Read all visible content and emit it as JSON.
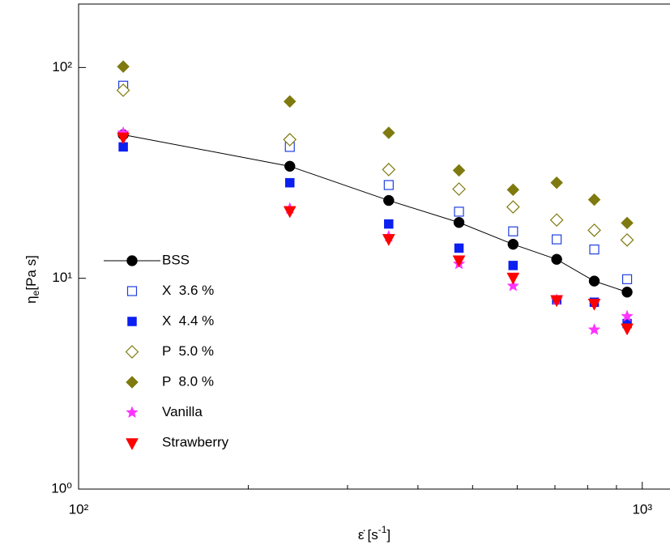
{
  "chart_data": {
    "type": "scatter",
    "x_label": {
      "symbol": "ε̇",
      "unit": "[s",
      "superscript": "-1",
      "close": "]"
    },
    "y_label": {
      "symbol": "η",
      "subscript": "e",
      "unit": "[Pa s]"
    },
    "log_x": true,
    "log_y": true,
    "xlim": [
      100,
      1120
    ],
    "ylim": [
      1,
      200
    ],
    "xticks": [
      {
        "value": 100,
        "label": "10²"
      },
      {
        "value": 1000,
        "label": "10³"
      }
    ],
    "xminor": [
      200,
      300,
      400,
      500,
      600,
      700,
      800,
      900
    ],
    "yticks": [
      {
        "value": 1,
        "label": "10⁰"
      },
      {
        "value": 10,
        "label": "10¹"
      },
      {
        "value": 100,
        "label": "10²"
      }
    ],
    "x": [
      120,
      237,
      355,
      473,
      590,
      705,
      822,
      940
    ],
    "series": [
      {
        "name": "BSS",
        "color": "#000000",
        "marker": "circle",
        "line": true,
        "values": [
          48,
          34,
          23.4,
          18.4,
          14.5,
          12.3,
          9.7,
          8.6
        ]
      },
      {
        "name": "X  3.6 %",
        "color": "#1f3fe0",
        "marker": "square-open",
        "values": [
          82,
          42,
          27.7,
          20.7,
          16.7,
          15.3,
          13.7,
          9.9
        ]
      },
      {
        "name": "X  4.4 %",
        "color": "#0a1ff0",
        "marker": "square",
        "values": [
          42,
          28.4,
          18.1,
          13.9,
          11.5,
          7.9,
          7.7,
          6.1
        ]
      },
      {
        "name": "P  5.0 %",
        "color": "#7f7a10",
        "marker": "diamond-open",
        "values": [
          78,
          45.5,
          32.8,
          26.5,
          21.8,
          18.9,
          16.9,
          15.2
        ]
      },
      {
        "name": "P  8.0 %",
        "color": "#7f7a10",
        "marker": "diamond",
        "values": [
          101,
          69,
          49,
          32.5,
          26.3,
          28.4,
          23.6,
          18.3
        ]
      },
      {
        "name": "Vanilla",
        "color": "#ff33ff",
        "marker": "star",
        "values": [
          49,
          21.4,
          15.8,
          11.7,
          9.2,
          7.9,
          5.7,
          6.6
        ]
      },
      {
        "name": "Strawberry",
        "color": "#ff0000",
        "marker": "triangle-down",
        "values": [
          46.7,
          20.9,
          15.4,
          12.2,
          10.1,
          7.9,
          7.6,
          5.8
        ]
      }
    ]
  }
}
